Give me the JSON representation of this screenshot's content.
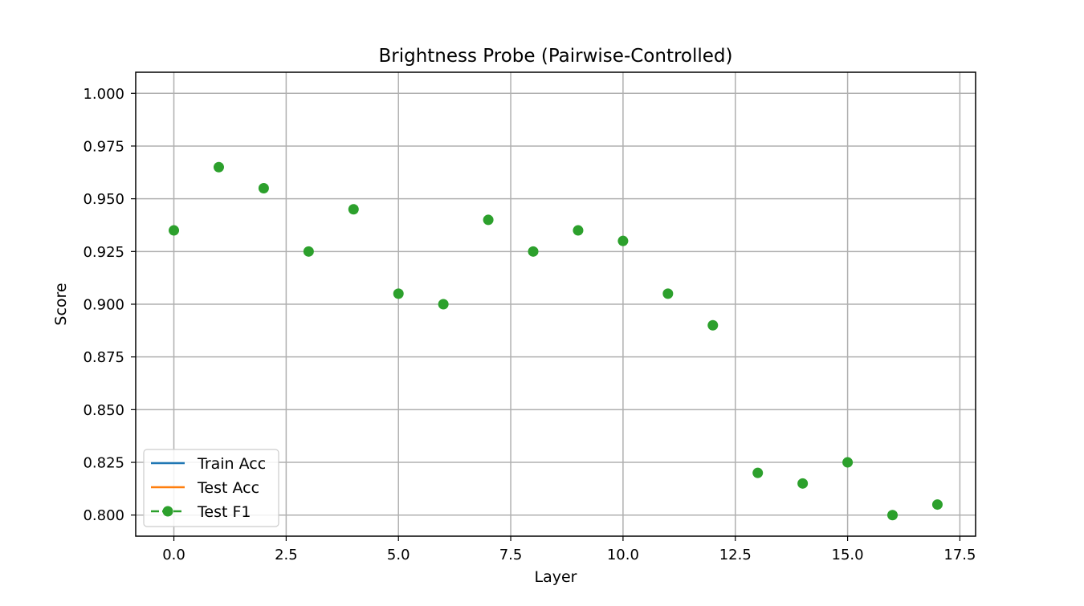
{
  "chart_data": {
    "type": "scatter",
    "title": "Brightness Probe (Pairwise-Controlled)",
    "xlabel": "Layer",
    "ylabel": "Score",
    "xlim": [
      -0.85,
      17.85
    ],
    "ylim": [
      0.79,
      1.01
    ],
    "xticks": [
      0.0,
      2.5,
      5.0,
      7.5,
      10.0,
      12.5,
      15.0,
      17.5
    ],
    "xtick_labels": [
      "0.0",
      "2.5",
      "5.0",
      "7.5",
      "10.0",
      "12.5",
      "15.0",
      "17.5"
    ],
    "yticks": [
      0.8,
      0.825,
      0.85,
      0.875,
      0.9,
      0.925,
      0.95,
      0.975,
      1.0
    ],
    "ytick_labels": [
      "0.800",
      "0.825",
      "0.850",
      "0.875",
      "0.900",
      "0.925",
      "0.950",
      "0.975",
      "1.000"
    ],
    "grid": true,
    "legend_position": "lower-left",
    "series": [
      {
        "name": "Train Acc",
        "color": "#1f77b4",
        "style": "solid-line",
        "x": [],
        "y": []
      },
      {
        "name": "Test Acc",
        "color": "#ff7f0e",
        "style": "solid-line",
        "x": [],
        "y": []
      },
      {
        "name": "Test F1",
        "color": "#2ca02c",
        "style": "dashed-line-with-circle-markers",
        "x": [
          0,
          1,
          2,
          3,
          4,
          5,
          6,
          7,
          8,
          9,
          10,
          11,
          12,
          13,
          14,
          15,
          16,
          17
        ],
        "y": [
          0.935,
          0.965,
          0.955,
          0.925,
          0.945,
          0.905,
          0.9,
          0.94,
          0.925,
          0.935,
          0.93,
          0.905,
          0.89,
          0.82,
          0.815,
          0.825,
          0.8,
          0.805
        ]
      }
    ]
  }
}
